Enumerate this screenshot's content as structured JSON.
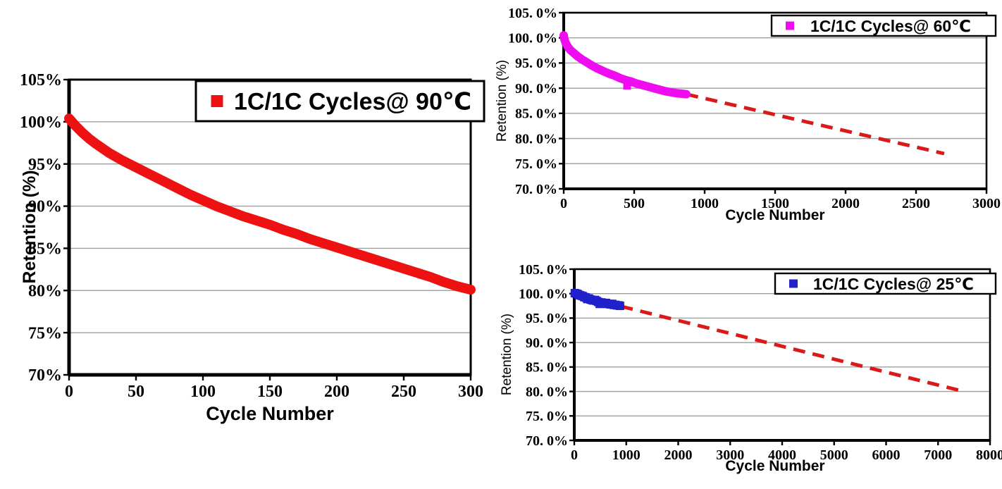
{
  "figure": {
    "description_colors": {
      "red_series": "#ee1111",
      "magenta_series": "#f00cf0",
      "blue_series": "#2021cc",
      "trend_red": "#da1a1a",
      "gridline_gray": "#9e9e9e",
      "text_black": "#000000",
      "background": "#ffffff"
    }
  },
  "chart_data": [
    {
      "id": "chart-90c",
      "type": "scatter",
      "legend_label": "1C/1C Cycles@ 90℃",
      "xlabel": "Cycle Number",
      "ylabel": "Retention (%)",
      "xlim": [
        0,
        300
      ],
      "ylim": [
        70,
        105
      ],
      "grid": "horizontal",
      "legend_position": "top-right",
      "xticks": [
        0,
        50,
        100,
        150,
        200,
        250,
        300
      ],
      "xtick_labels": [
        "0",
        "50",
        "100",
        "150",
        "200",
        "250",
        "300"
      ],
      "yticks": [
        105,
        100,
        95,
        90,
        85,
        80,
        75,
        70
      ],
      "ytick_labels": [
        "105%",
        "100%",
        "95%",
        "90%",
        "85%",
        "80%",
        "75%",
        "70%"
      ],
      "series_color": "#ee1111",
      "line_points": [
        [
          0,
          100.4
        ],
        [
          5,
          99.5
        ],
        [
          10,
          98.7
        ],
        [
          15,
          98.0
        ],
        [
          20,
          97.4
        ],
        [
          30,
          96.3
        ],
        [
          40,
          95.4
        ],
        [
          50,
          94.6
        ],
        [
          60,
          93.8
        ],
        [
          70,
          93.0
        ],
        [
          80,
          92.2
        ],
        [
          90,
          91.4
        ],
        [
          100,
          90.7
        ],
        [
          110,
          90.0
        ],
        [
          120,
          89.4
        ],
        [
          130,
          88.8
        ],
        [
          140,
          88.3
        ],
        [
          150,
          87.8
        ],
        [
          160,
          87.2
        ],
        [
          170,
          86.7
        ],
        [
          180,
          86.1
        ],
        [
          190,
          85.6
        ],
        [
          200,
          85.1
        ],
        [
          210,
          84.6
        ],
        [
          220,
          84.1
        ],
        [
          230,
          83.6
        ],
        [
          240,
          83.1
        ],
        [
          250,
          82.6
        ],
        [
          260,
          82.1
        ],
        [
          270,
          81.6
        ],
        [
          280,
          81.0
        ],
        [
          290,
          80.5
        ],
        [
          300,
          80.1
        ]
      ]
    },
    {
      "id": "chart-60c",
      "type": "scatter",
      "legend_label": "1C/1C Cycles@ 60℃",
      "xlabel": "Cycle Number",
      "ylabel": "Retention (%)",
      "xlim": [
        0,
        3000
      ],
      "ylim": [
        70,
        105
      ],
      "grid": "horizontal",
      "legend_position": "top-right",
      "xticks": [
        0,
        500,
        1000,
        1500,
        2000,
        2500,
        3000
      ],
      "xtick_labels": [
        "0",
        "500",
        "1000",
        "1500",
        "2000",
        "2500",
        "3000"
      ],
      "yticks": [
        105,
        100,
        95,
        90,
        85,
        80,
        75,
        70
      ],
      "ytick_labels": [
        "105. 0%",
        "100. 0%",
        "95. 0%",
        "90. 0%",
        "85. 0%",
        "80. 0%",
        "75. 0%",
        "70. 0%"
      ],
      "series_color": "#f00cf0",
      "line_points": [
        [
          0,
          100.5
        ],
        [
          5,
          99.7
        ],
        [
          15,
          98.9
        ],
        [
          30,
          98.2
        ],
        [
          50,
          97.5
        ],
        [
          75,
          96.9
        ],
        [
          100,
          96.3
        ],
        [
          130,
          95.7
        ],
        [
          160,
          95.2
        ],
        [
          200,
          94.5
        ],
        [
          240,
          93.9
        ],
        [
          280,
          93.4
        ],
        [
          320,
          92.9
        ],
        [
          360,
          92.5
        ],
        [
          400,
          92.0
        ],
        [
          440,
          91.6
        ],
        [
          480,
          91.3
        ],
        [
          520,
          90.9
        ],
        [
          560,
          90.6
        ],
        [
          600,
          90.3
        ],
        [
          640,
          90.0
        ],
        [
          680,
          89.7
        ],
        [
          720,
          89.4
        ],
        [
          760,
          89.2
        ],
        [
          800,
          89.0
        ],
        [
          840,
          88.9
        ],
        [
          870,
          88.8
        ]
      ],
      "extra_markers": [
        [
          450,
          90.5
        ]
      ],
      "trend": {
        "from": [
          870,
          88.8
        ],
        "to": [
          2700,
          77.0
        ],
        "color": "#da1a1a",
        "style": "dashed"
      }
    },
    {
      "id": "chart-25c",
      "type": "scatter",
      "legend_label": "1C/1C Cycles@ 25℃",
      "xlabel": "Cycle Number",
      "ylabel": "Retention (%)",
      "xlim": [
        0,
        8000
      ],
      "ylim": [
        70,
        105
      ],
      "grid": "horizontal",
      "legend_position": "top-right",
      "xticks": [
        0,
        1000,
        2000,
        3000,
        4000,
        5000,
        6000,
        7000,
        8000
      ],
      "xtick_labels": [
        "0",
        "1000",
        "2000",
        "3000",
        "4000",
        "5000",
        "6000",
        "7000",
        "8000"
      ],
      "yticks": [
        105,
        100,
        95,
        90,
        85,
        80,
        75,
        70
      ],
      "ytick_labels": [
        "105. 0%",
        "100. 0%",
        "95. 0%",
        "90. 0%",
        "85. 0%",
        "80. 0%",
        "75. 0%",
        "70. 0%"
      ],
      "series_color": "#2021cc",
      "points": [
        [
          10,
          100.1
        ],
        [
          40,
          100.0
        ],
        [
          70,
          99.9
        ],
        [
          100,
          99.7
        ],
        [
          130,
          99.6
        ],
        [
          160,
          99.5
        ],
        [
          190,
          99.3
        ],
        [
          220,
          99.2
        ],
        [
          250,
          98.9
        ],
        [
          280,
          99.0
        ],
        [
          310,
          98.8
        ],
        [
          340,
          98.7
        ],
        [
          370,
          98.6
        ],
        [
          400,
          98.7
        ],
        [
          430,
          98.5
        ],
        [
          460,
          98.3
        ],
        [
          490,
          97.9
        ],
        [
          520,
          98.2
        ],
        [
          550,
          98.1
        ],
        [
          580,
          98.0
        ],
        [
          610,
          98.1
        ],
        [
          640,
          97.9
        ],
        [
          670,
          97.9
        ],
        [
          700,
          97.8
        ],
        [
          730,
          97.9
        ],
        [
          760,
          97.7
        ],
        [
          790,
          97.7
        ],
        [
          820,
          97.6
        ],
        [
          850,
          97.6
        ],
        [
          880,
          97.5
        ]
      ],
      "trend": {
        "from": [
          900,
          97.4
        ],
        "to": [
          7500,
          80.0
        ],
        "color": "#da1a1a",
        "style": "dashed"
      }
    }
  ]
}
